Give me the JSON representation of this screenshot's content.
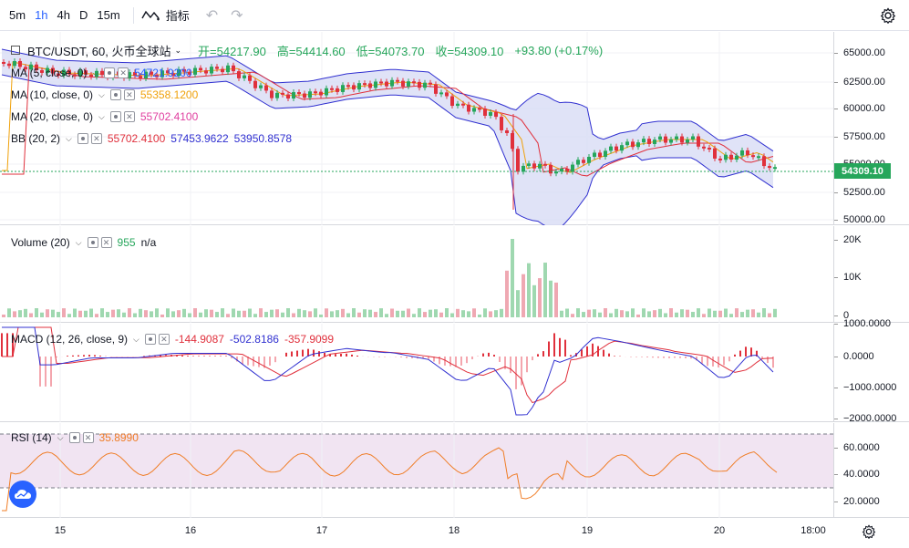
{
  "toolbar": {
    "timeframes": [
      "5m",
      "1h",
      "4h",
      "D",
      "15m"
    ],
    "active_index": 1,
    "indicators_label": "指标"
  },
  "header": {
    "symbol": "BTC/USDT, 60, 火币全球站",
    "open": "开=54217.90",
    "high": "高=54414.60",
    "low": "低=54073.70",
    "close": "收=54309.10",
    "change": "+93.80 (+0.17%)"
  },
  "legends": {
    "ma5": {
      "name": "MA (5, close, 0)",
      "value": "54721.9200",
      "color": "#2962ff"
    },
    "ma10": {
      "name": "MA (10, close, 0)",
      "value": "55358.1200",
      "color": "#f0a10a"
    },
    "ma20": {
      "name": "MA (20, close, 0)",
      "value": "55702.4100",
      "color": "#e040a0"
    },
    "bb": {
      "name": "BB (20, 2)",
      "v1": "55702.4100",
      "v2": "57453.9622",
      "v3": "53950.8578",
      "c1": "#e0303c",
      "c2": "#3030d0",
      "c3": "#3030d0"
    },
    "volume": {
      "name": "Volume (20)",
      "value": "955",
      "extra": "n/a"
    },
    "macd": {
      "name": "MACD (12, 26, close, 9)",
      "v1": "-144.9087",
      "v2": "-502.8186",
      "v3": "-357.9099",
      "c1": "#e0303c",
      "c2": "#3030d0",
      "c3": "#e0303c"
    },
    "rsi": {
      "name": "RSI (14)",
      "value": "35.8990",
      "color": "#f07d26"
    }
  },
  "axes": {
    "price_ticks": [
      "65000.00",
      "62500.00",
      "60000.00",
      "57500.00",
      "55000.00",
      "52500.00",
      "50000.00"
    ],
    "price_tick_values": [
      65000,
      62500,
      60000,
      57500,
      55000,
      52500,
      50000
    ],
    "last_price": "54309.10",
    "volume_ticks": [
      "20K",
      "10K",
      "0"
    ],
    "macd_ticks": [
      "1000.0000",
      "0.0000",
      "−1000.0000",
      "−2000.0000"
    ],
    "rsi_ticks": [
      "60.0000",
      "40.0000",
      "20.0000"
    ],
    "time_labels": [
      "15",
      "16",
      "17",
      "18",
      "19",
      "20",
      "18:00"
    ]
  },
  "colors": {
    "up": "#26a65b",
    "down": "#e0303c",
    "bb_fill": "#d8dcf5",
    "rsi_band": "#f1e4f2"
  },
  "icons": {
    "settings": "gear-icon",
    "indicators": "indicator-wave-icon",
    "undo": "undo-icon",
    "redo": "redo-icon",
    "logo": "tradingview-cloud-icon"
  }
}
